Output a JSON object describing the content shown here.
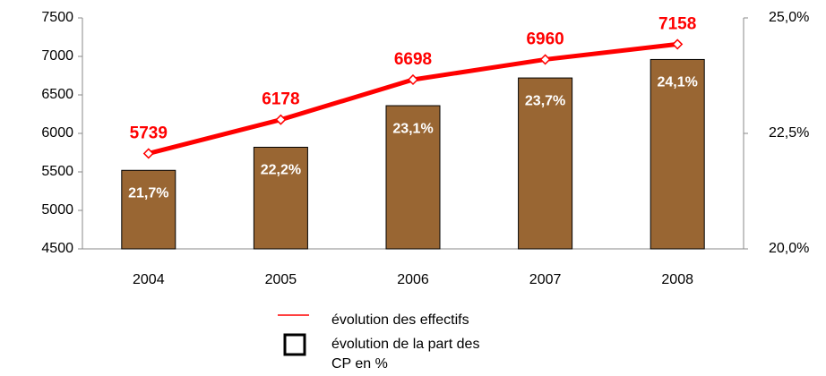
{
  "chart_data": {
    "type": "combo",
    "categories": [
      "2004",
      "2005",
      "2006",
      "2007",
      "2008"
    ],
    "series": [
      {
        "name": "évolution des effectifs",
        "type": "line",
        "color": "#ff0000",
        "values": [
          5739,
          6178,
          6698,
          6960,
          7158
        ]
      },
      {
        "name": "évolution de la part des CP en %",
        "type": "bar",
        "axis": "y2",
        "color": "#996633",
        "values": [
          21.7,
          22.2,
          23.1,
          23.7,
          24.1
        ],
        "value_labels": [
          "21,7%",
          "22,2%",
          "23,1%",
          "23,7%",
          "24,1%"
        ]
      }
    ],
    "ylim": [
      4500,
      7500
    ],
    "yticks": [
      4500,
      5000,
      5500,
      6000,
      6500,
      7000,
      7500
    ],
    "y2lim": [
      20,
      25
    ],
    "y2ticks": [
      {
        "value": 20,
        "label": "20,0%"
      },
      {
        "value": 22.5,
        "label": "22,5%"
      },
      {
        "value": 25,
        "label": "25,0%"
      }
    ],
    "grid": false
  }
}
